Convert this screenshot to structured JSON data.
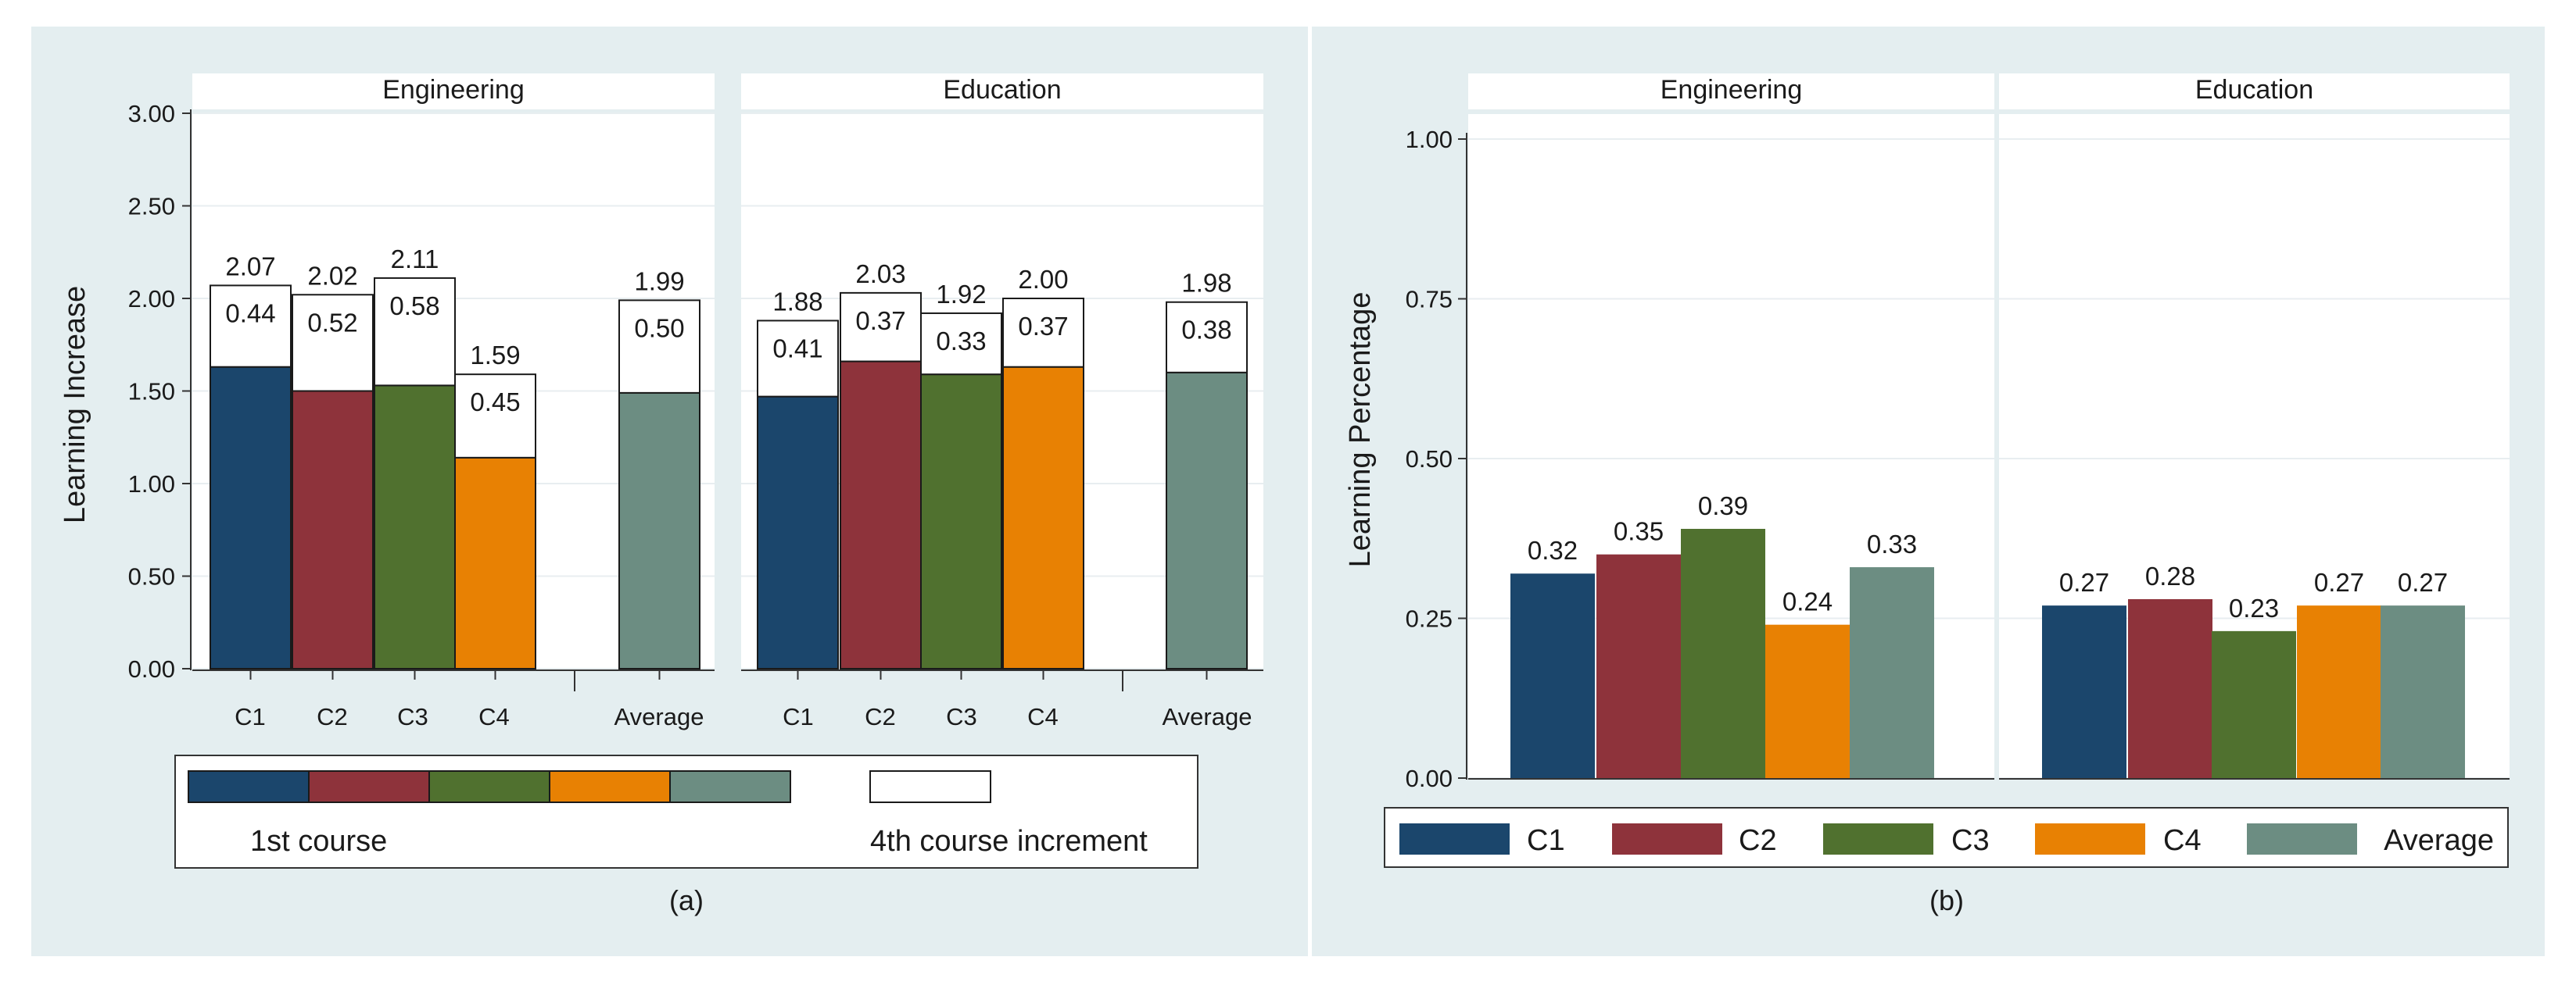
{
  "colors": {
    "background": "#e4eef0",
    "plot": "#ffffff",
    "C1": "#1b466c",
    "C2": "#8e333b",
    "C3": "#50712f",
    "C4": "#e88103",
    "Average": "#6c8d82",
    "increment": "#ffffff",
    "grid": "#e8eef0"
  },
  "chart_data": [
    {
      "id": "a",
      "type": "bar",
      "stacked": true,
      "caption": "(a)",
      "ylabel": "Learning Increase",
      "ylim": [
        0,
        3
      ],
      "yticks": [
        "0.00",
        "0.50",
        "1.00",
        "1.50",
        "2.00",
        "2.50",
        "3.00"
      ],
      "categories": [
        "C1",
        "C2",
        "C3",
        "C4",
        "Average"
      ],
      "panels": [
        {
          "title": "Engineering",
          "first_course": [
            1.63,
            1.5,
            1.53,
            1.14,
            1.49
          ],
          "increment": [
            0.44,
            0.52,
            0.58,
            0.45,
            0.5
          ],
          "total_labels": [
            "2.07",
            "2.02",
            "2.11",
            "1.59",
            "1.99"
          ],
          "increment_labels": [
            "0.44",
            "0.52",
            "0.58",
            "0.45",
            "0.50"
          ]
        },
        {
          "title": "Education",
          "first_course": [
            1.47,
            1.66,
            1.59,
            1.63,
            1.6
          ],
          "increment": [
            0.41,
            0.37,
            0.33,
            0.37,
            0.38
          ],
          "total_labels": [
            "1.88",
            "2.03",
            "1.92",
            "2.00",
            "1.98"
          ],
          "increment_labels": [
            "0.41",
            "0.37",
            "0.33",
            "0.37",
            "0.38"
          ]
        }
      ],
      "legend": {
        "first_course": "1st course",
        "increment": "4th course increment"
      }
    },
    {
      "id": "b",
      "type": "bar",
      "caption": "(b)",
      "ylabel": "Learning Percentage",
      "ylim": [
        0,
        1
      ],
      "yticks": [
        "0.00",
        "0.25",
        "0.50",
        "0.75",
        "1.00"
      ],
      "series_names": [
        "C1",
        "C2",
        "C3",
        "C4",
        "Average"
      ],
      "panels": [
        {
          "title": "Engineering",
          "values": [
            0.32,
            0.35,
            0.39,
            0.24,
            0.33
          ],
          "labels": [
            "0.32",
            "0.35",
            "0.39",
            "0.24",
            "0.33"
          ]
        },
        {
          "title": "Education",
          "values": [
            0.27,
            0.28,
            0.23,
            0.27,
            0.27
          ],
          "labels": [
            "0.27",
            "0.28",
            "0.23",
            "0.27",
            "0.27"
          ]
        }
      ],
      "legend": [
        "C1",
        "C2",
        "C3",
        "C4",
        "Average"
      ]
    }
  ]
}
